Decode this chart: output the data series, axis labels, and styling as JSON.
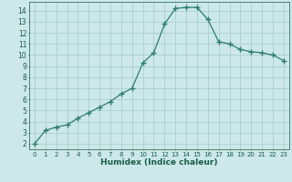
{
  "xlabel": "Humidex (Indice chaleur)",
  "ylabel": "",
  "x_values": [
    0,
    1,
    2,
    3,
    4,
    5,
    6,
    7,
    8,
    9,
    10,
    11,
    12,
    13,
    14,
    15,
    16,
    17,
    18,
    19,
    20,
    21,
    22,
    23
  ],
  "y_values": [
    2.0,
    3.2,
    3.5,
    3.7,
    4.3,
    4.8,
    5.3,
    5.8,
    6.5,
    7.0,
    9.3,
    10.2,
    12.8,
    14.2,
    14.3,
    14.3,
    13.2,
    11.2,
    11.0,
    10.5,
    10.3,
    10.2,
    10.0,
    9.5
  ],
  "line_color": "#2e7d6e",
  "marker": "+",
  "marker_size": 4,
  "bg_color": "#cce8e8",
  "grid_color": "#aacfcf",
  "axis_label_color": "#1a5c4a",
  "tick_color": "#1a5c4a",
  "ylim": [
    1.5,
    14.8
  ],
  "xlim": [
    -0.5,
    23.5
  ],
  "yticks": [
    2,
    3,
    4,
    5,
    6,
    7,
    8,
    9,
    10,
    11,
    12,
    13,
    14
  ],
  "xticks": [
    0,
    1,
    2,
    3,
    4,
    5,
    6,
    7,
    8,
    9,
    10,
    11,
    12,
    13,
    14,
    15,
    16,
    17,
    18,
    19,
    20,
    21,
    22,
    23
  ]
}
